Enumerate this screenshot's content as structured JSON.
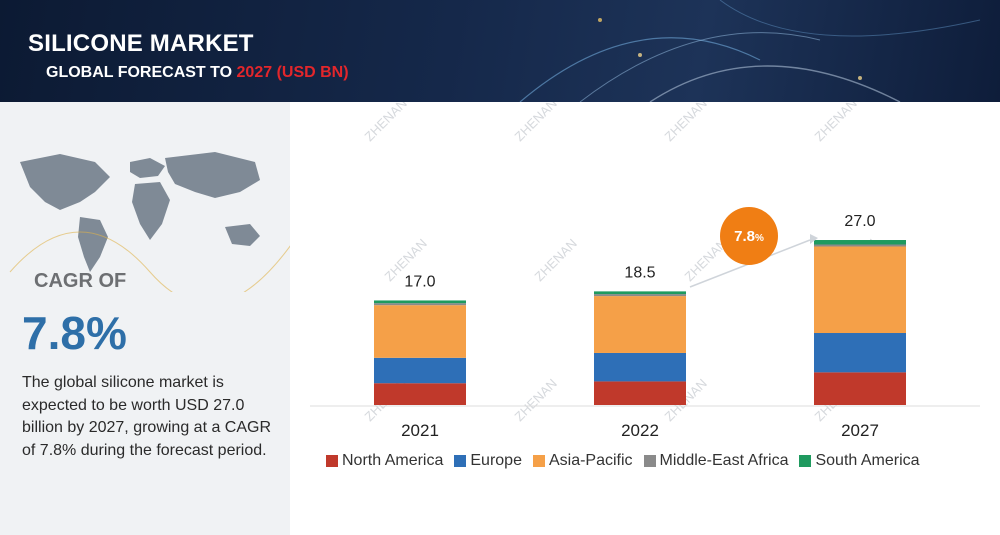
{
  "header": {
    "title": "SILICONE MARKET",
    "subtitle_prefix": "GLOBAL FORECAST TO ",
    "subtitle_highlight": "2027 (USD BN)"
  },
  "left_panel": {
    "cagr_label": "CAGR OF",
    "cagr_value": "7.8%",
    "description": "The global silicone market is expected to be worth USD 27.0 billion by 2027, growing at a CAGR of 7.8% during the forecast period."
  },
  "badge": {
    "value": "7.8",
    "unit": "%"
  },
  "watermark": "ZHENAN",
  "colors": {
    "north_america": "#c0392b",
    "europe": "#2e6fb7",
    "asia_pacific": "#f5a048",
    "middle_east_africa": "#8a8a8a",
    "south_america": "#1f9a5f",
    "cagr_badge": "#f07e14",
    "header_bg": "#0c1a33",
    "highlight_red": "#e3262b"
  },
  "chart_data": {
    "type": "bar",
    "stacked": true,
    "categories": [
      "2021",
      "2022",
      "2027"
    ],
    "totals": [
      "17.0",
      "18.5",
      "27.0"
    ],
    "series": [
      {
        "name": "North America",
        "key": "north_america",
        "values": [
          3.6,
          3.9,
          5.4
        ]
      },
      {
        "name": "Europe",
        "key": "europe",
        "values": [
          4.2,
          4.7,
          6.5
        ]
      },
      {
        "name": "Asia-Pacific",
        "key": "asia_pacific",
        "values": [
          8.7,
          9.4,
          14.3
        ]
      },
      {
        "name": "Middle-East Africa",
        "key": "middle_east_africa",
        "values": [
          0.05,
          0.05,
          0.06
        ]
      },
      {
        "name": "South America",
        "key": "south_america",
        "values": [
          0.45,
          0.45,
          0.74
        ]
      }
    ],
    "legend": [
      "North America",
      "Europe",
      "Asia-Pacific",
      "Middle-East Africa",
      "South America"
    ],
    "legend_position": "bottom",
    "grid": false
  }
}
